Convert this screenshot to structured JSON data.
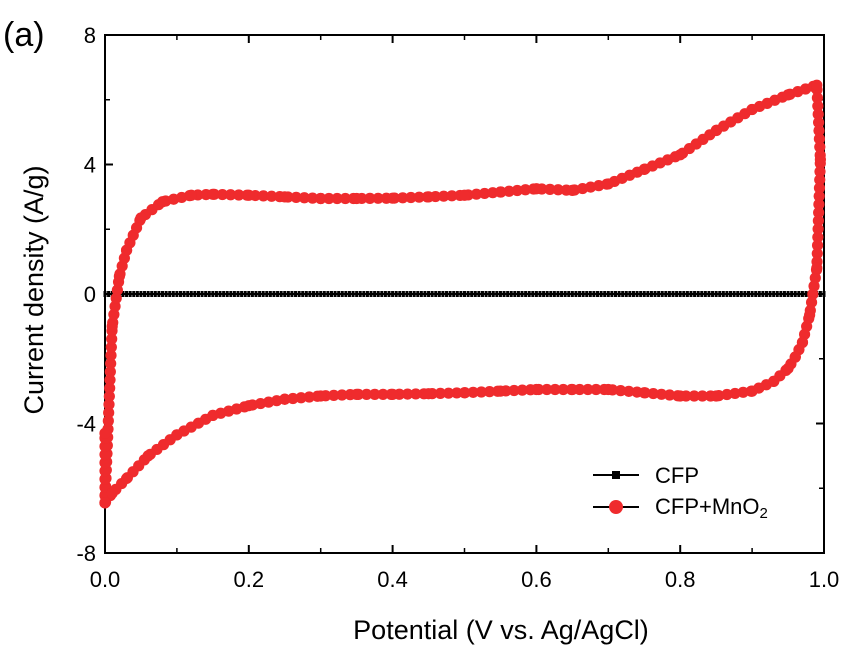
{
  "chart_data": {
    "type": "line",
    "panel_label": "(a)",
    "xlabel": "Potential (V vs. Ag/AgCl)",
    "ylabel": "Current density (A/g)",
    "xlim": [
      0.0,
      1.0
    ],
    "ylim": [
      -8,
      8
    ],
    "xticks": [
      0.0,
      0.2,
      0.4,
      0.6,
      0.8,
      1.0
    ],
    "xtick_labels": [
      "0.0",
      "0.2",
      "0.4",
      "0.6",
      "0.8",
      "1.0"
    ],
    "yticks": [
      -8,
      -4,
      0,
      4,
      8
    ],
    "ytick_labels": [
      "-8",
      "-4",
      "0",
      "4",
      "8"
    ],
    "grid": false,
    "legend_position": "bottom-right",
    "series": [
      {
        "name": "CFP",
        "color": "#000000",
        "marker": "small-square",
        "x": [
          0.0,
          0.1,
          0.2,
          0.3,
          0.4,
          0.5,
          0.6,
          0.7,
          0.8,
          0.9,
          1.0
        ],
        "y": [
          0,
          0,
          0,
          0,
          0,
          0,
          0,
          0,
          0,
          0,
          0
        ]
      },
      {
        "name": "CFP+MnO",
        "name_subscript": "2",
        "color": "#ef2b2d",
        "marker": "circle",
        "x": [
          0.0,
          0.01,
          0.02,
          0.03,
          0.05,
          0.08,
          0.12,
          0.15,
          0.2,
          0.25,
          0.3,
          0.35,
          0.4,
          0.45,
          0.5,
          0.55,
          0.6,
          0.65,
          0.7,
          0.75,
          0.8,
          0.85,
          0.9,
          0.95,
          0.99,
          0.995,
          0.99,
          0.98,
          0.97,
          0.96,
          0.95,
          0.93,
          0.9,
          0.85,
          0.8,
          0.75,
          0.7,
          0.65,
          0.6,
          0.55,
          0.5,
          0.45,
          0.4,
          0.35,
          0.3,
          0.25,
          0.2,
          0.15,
          0.1,
          0.06,
          0.03,
          0.01,
          0.0,
          0.0
        ],
        "y": [
          -6.45,
          -1.0,
          0.55,
          1.35,
          2.35,
          2.85,
          3.05,
          3.08,
          3.05,
          3.0,
          2.95,
          2.95,
          2.96,
          3.0,
          3.05,
          3.15,
          3.25,
          3.2,
          3.4,
          3.85,
          4.3,
          5.05,
          5.7,
          6.15,
          6.45,
          4.15,
          0.8,
          -0.65,
          -1.5,
          -1.95,
          -2.3,
          -2.7,
          -3.0,
          -3.15,
          -3.15,
          -3.05,
          -2.95,
          -2.95,
          -2.95,
          -3.0,
          -3.05,
          -3.08,
          -3.1,
          -3.1,
          -3.15,
          -3.25,
          -3.45,
          -3.75,
          -4.35,
          -5.0,
          -5.7,
          -6.15,
          -6.45,
          -4.3
        ]
      }
    ]
  }
}
